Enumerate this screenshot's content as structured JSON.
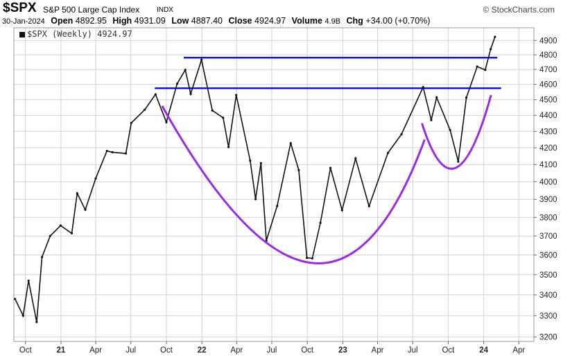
{
  "header": {
    "symbol": "$SPX",
    "name": "S&P 500 Large Cap Index",
    "exchange": "INDX",
    "brand": "© StockCharts.com",
    "date": "30-Jan-2024",
    "open_label": "Open",
    "open": "4892.95",
    "high_label": "High",
    "high": "4931.09",
    "low_label": "Low",
    "low": "4887.40",
    "close_label": "Close",
    "close": "4924.97",
    "volume_label": "Volume",
    "volume": "4.9B",
    "chg_label": "Chg",
    "chg": "+34.00 (+0.70%)"
  },
  "legend": {
    "text": "$SPX (Weekly) 4924.97"
  },
  "colors": {
    "price": "#111111",
    "resistance": "#1010cc",
    "cup": "#9a2be2",
    "grid": "#d0d0d0"
  },
  "chart_data": {
    "type": "line",
    "yscale": "log",
    "ylim": [
      3180,
      4990
    ],
    "xlim": [
      "2020-09-01",
      "2024-05-10"
    ],
    "yticks": [
      3200,
      3300,
      3400,
      3500,
      3600,
      3700,
      3800,
      3900,
      4000,
      4100,
      4200,
      4300,
      4400,
      4500,
      4600,
      4700,
      4800,
      4900
    ],
    "xticks": [
      {
        "label": "Oct",
        "date": "2020-10-01"
      },
      {
        "label": "21",
        "date": "2021-01-01"
      },
      {
        "label": "Apr",
        "date": "2021-04-01"
      },
      {
        "label": "Jul",
        "date": "2021-07-01"
      },
      {
        "label": "Oct",
        "date": "2021-10-01"
      },
      {
        "label": "22",
        "date": "2022-01-01"
      },
      {
        "label": "Apr",
        "date": "2022-04-01"
      },
      {
        "label": "Jul",
        "date": "2022-07-01"
      },
      {
        "label": "Oct",
        "date": "2022-10-01"
      },
      {
        "label": "23",
        "date": "2023-01-01"
      },
      {
        "label": "Apr",
        "date": "2023-04-01"
      },
      {
        "label": "Jul",
        "date": "2023-07-01"
      },
      {
        "label": "Oct",
        "date": "2023-10-01"
      },
      {
        "label": "24",
        "date": "2024-01-01"
      },
      {
        "label": "Apr",
        "date": "2024-04-01"
      }
    ],
    "series": [
      {
        "values": [
          {
            "x": "2020-09-04",
            "y": 3380
          },
          {
            "x": "2020-09-25",
            "y": 3300
          },
          {
            "x": "2020-10-09",
            "y": 3470
          },
          {
            "x": "2020-10-30",
            "y": 3270
          },
          {
            "x": "2020-11-13",
            "y": 3590
          },
          {
            "x": "2020-12-04",
            "y": 3700
          },
          {
            "x": "2020-12-31",
            "y": 3756
          },
          {
            "x": "2021-01-29",
            "y": 3714
          },
          {
            "x": "2021-02-12",
            "y": 3934
          },
          {
            "x": "2021-03-05",
            "y": 3842
          },
          {
            "x": "2021-04-01",
            "y": 4019
          },
          {
            "x": "2021-04-30",
            "y": 4181
          },
          {
            "x": "2021-05-14",
            "y": 4173
          },
          {
            "x": "2021-06-18",
            "y": 4166
          },
          {
            "x": "2021-07-02",
            "y": 4352
          },
          {
            "x": "2021-08-06",
            "y": 4436
          },
          {
            "x": "2021-09-03",
            "y": 4535
          },
          {
            "x": "2021-10-01",
            "y": 4357
          },
          {
            "x": "2021-10-29",
            "y": 4605
          },
          {
            "x": "2021-11-19",
            "y": 4697
          },
          {
            "x": "2021-12-03",
            "y": 4538
          },
          {
            "x": "2021-12-31",
            "y": 4766
          },
          {
            "x": "2022-01-28",
            "y": 4431
          },
          {
            "x": "2022-02-25",
            "y": 4385
          },
          {
            "x": "2022-03-11",
            "y": 4204
          },
          {
            "x": "2022-03-31",
            "y": 4530
          },
          {
            "x": "2022-05-06",
            "y": 4123
          },
          {
            "x": "2022-05-20",
            "y": 3901
          },
          {
            "x": "2022-06-03",
            "y": 4108
          },
          {
            "x": "2022-06-17",
            "y": 3675
          },
          {
            "x": "2022-07-15",
            "y": 3863
          },
          {
            "x": "2022-08-19",
            "y": 4228
          },
          {
            "x": "2022-09-09",
            "y": 4067
          },
          {
            "x": "2022-09-30",
            "y": 3586
          },
          {
            "x": "2022-10-14",
            "y": 3583
          },
          {
            "x": "2022-11-04",
            "y": 3771
          },
          {
            "x": "2022-11-30",
            "y": 4080
          },
          {
            "x": "2022-12-30",
            "y": 3840
          },
          {
            "x": "2023-02-03",
            "y": 4136
          },
          {
            "x": "2023-03-10",
            "y": 3862
          },
          {
            "x": "2023-04-28",
            "y": 4169
          },
          {
            "x": "2023-06-02",
            "y": 4282
          },
          {
            "x": "2023-07-28",
            "y": 4582
          },
          {
            "x": "2023-08-18",
            "y": 4370
          },
          {
            "x": "2023-09-01",
            "y": 4515
          },
          {
            "x": "2023-10-06",
            "y": 4308
          },
          {
            "x": "2023-10-27",
            "y": 4117
          },
          {
            "x": "2023-11-17",
            "y": 4514
          },
          {
            "x": "2023-12-15",
            "y": 4719
          },
          {
            "x": "2024-01-05",
            "y": 4697
          },
          {
            "x": "2024-01-19",
            "y": 4839
          },
          {
            "x": "2024-01-30",
            "y": 4925
          }
        ]
      }
    ],
    "annotations": [
      {
        "type": "hline",
        "y": 4780,
        "x_start": "2021-11-15",
        "x_end": "2024-02-05"
      },
      {
        "type": "hline",
        "y": 4575,
        "x_start": "2021-09-01",
        "x_end": "2024-02-15"
      },
      {
        "type": "curve",
        "shape": "cup",
        "points": [
          {
            "x": "2021-09-20",
            "y": 4460
          },
          {
            "x": "2022-10-10",
            "y": 3560
          },
          {
            "x": "2023-08-01",
            "y": 4250
          }
        ]
      },
      {
        "type": "curve",
        "shape": "handle",
        "points": [
          {
            "x": "2023-07-25",
            "y": 4350
          },
          {
            "x": "2023-10-20",
            "y": 4080
          },
          {
            "x": "2024-01-20",
            "y": 4530
          }
        ]
      }
    ]
  }
}
